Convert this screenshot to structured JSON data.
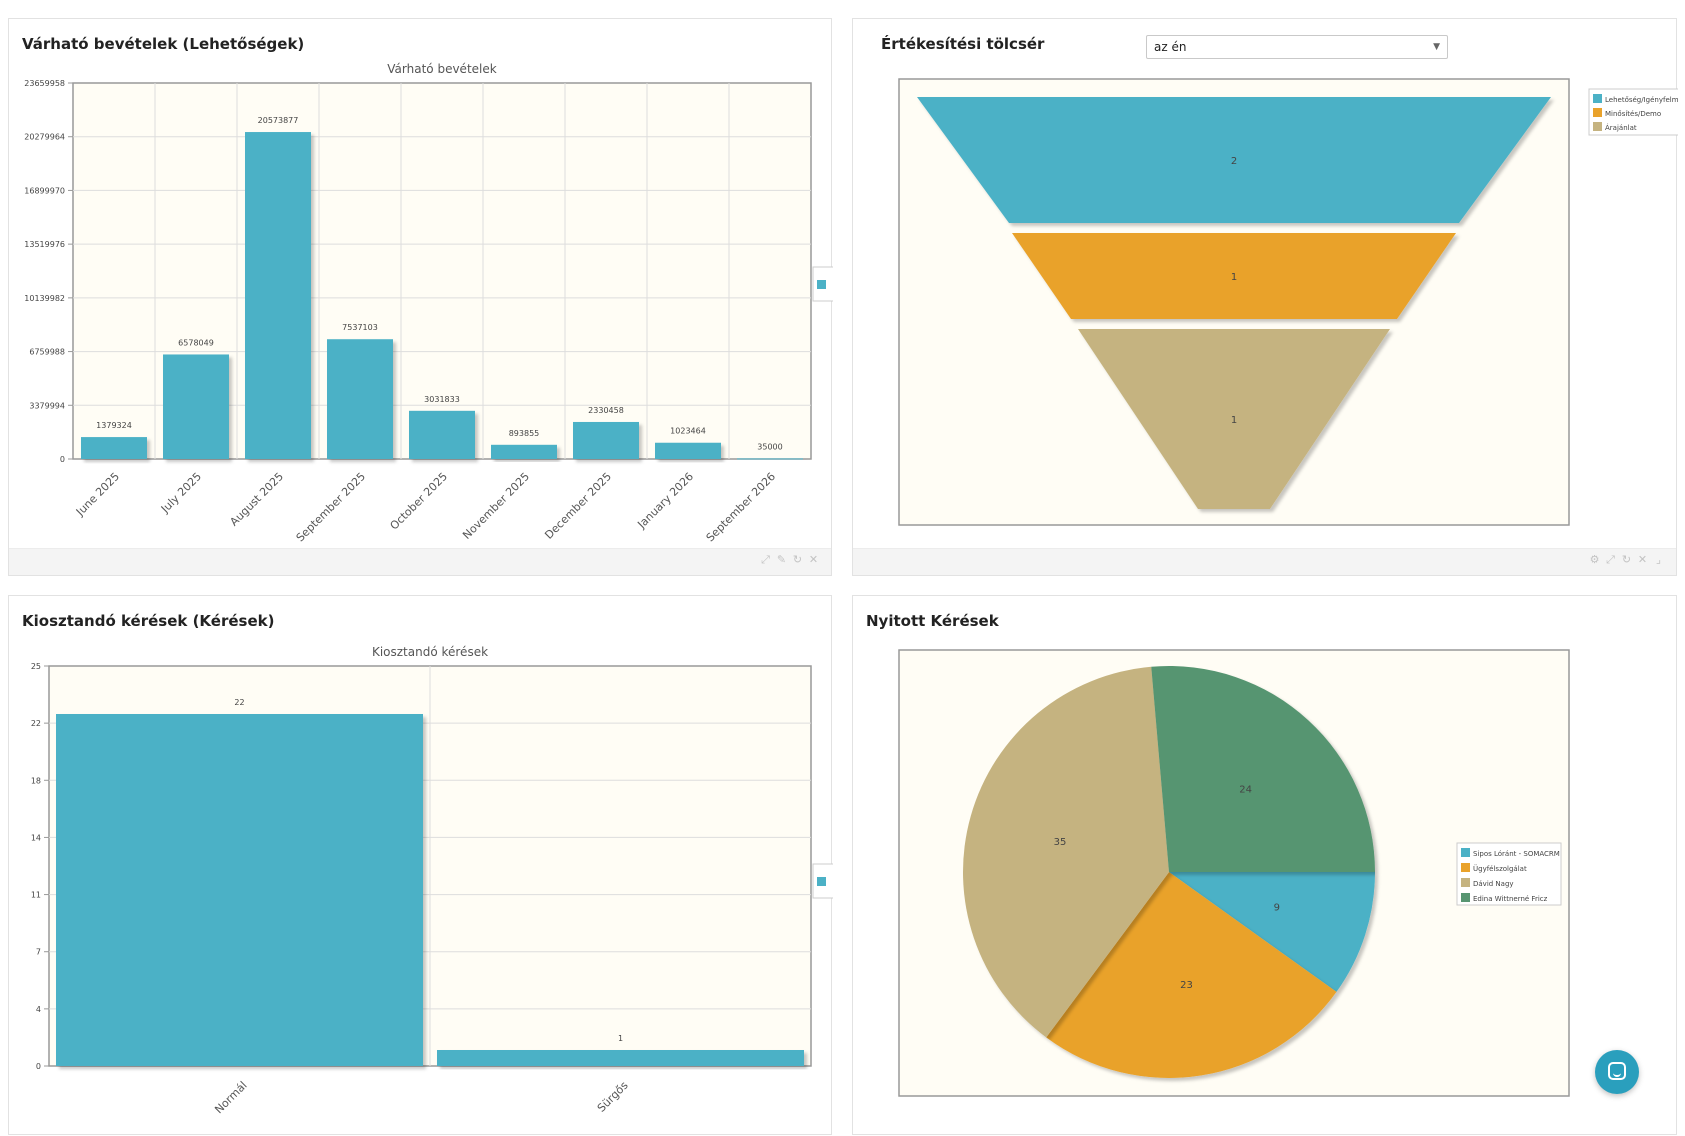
{
  "dashlets": {
    "revenue": {
      "title": "Várható bevételek (Lehetőségek)"
    },
    "funnel": {
      "title": "Értékesítési tölcsér",
      "select_value": "az én"
    },
    "requests": {
      "title": "Kiosztandó kérések (Kérések)"
    },
    "open": {
      "title": "Nyitott Kérések"
    }
  },
  "colors": {
    "teal": "#4bb1c6",
    "orange": "#e9a22b",
    "tan": "#c5b380",
    "green": "#579571",
    "plot_bg": "#fffdf5"
  },
  "icons": {
    "footer_revenue": [
      "maximize-icon",
      "edit-icon",
      "refresh-icon",
      "close-icon"
    ],
    "footer_funnel": [
      "gear-icon",
      "maximize-icon",
      "refresh-icon",
      "close-icon",
      "resize-icon"
    ]
  },
  "chart_data": [
    {
      "id": "revenue",
      "type": "bar",
      "title": "Várható bevételek",
      "categories": [
        "June 2025",
        "July 2025",
        "August 2025",
        "September 2025",
        "October 2025",
        "November 2025",
        "December 2025",
        "January 2026",
        "September 2026"
      ],
      "values": [
        1379324,
        6578049,
        20573877,
        7537103,
        3031833,
        893855,
        2330458,
        1023464,
        35000
      ],
      "yticks": [
        "0",
        "3379994",
        "6759988",
        "10139982",
        "13519976",
        "16899970",
        "20279964",
        "23659958"
      ],
      "ylim": [
        0,
        23659958
      ],
      "grid": true,
      "legend_position": "right"
    },
    {
      "id": "funnel",
      "type": "funnel",
      "title": "",
      "categories": [
        "Lehetőség/Igényfelmé",
        "Minősítés/Demo",
        "Árajánlat"
      ],
      "values": [
        2,
        1,
        1
      ],
      "legend_position": "top-right"
    },
    {
      "id": "requests",
      "type": "bar",
      "title": "Kiosztandó kérések",
      "categories": [
        "Normál",
        "Sürgős"
      ],
      "values": [
        22,
        1
      ],
      "yticks": [
        "0",
        "4",
        "7",
        "11",
        "14",
        "18",
        "22",
        "25"
      ],
      "ylim": [
        0,
        25
      ],
      "grid": true,
      "legend_position": "right"
    },
    {
      "id": "open",
      "type": "pie",
      "title": "",
      "categories": [
        "Sipos Lóránt - SOMACRM",
        "Ügyfélszolgálat",
        "Dávid Nagy",
        "Edina Wittnerné Fricz"
      ],
      "values": [
        9,
        23,
        35,
        24
      ],
      "legend_position": "right"
    }
  ]
}
